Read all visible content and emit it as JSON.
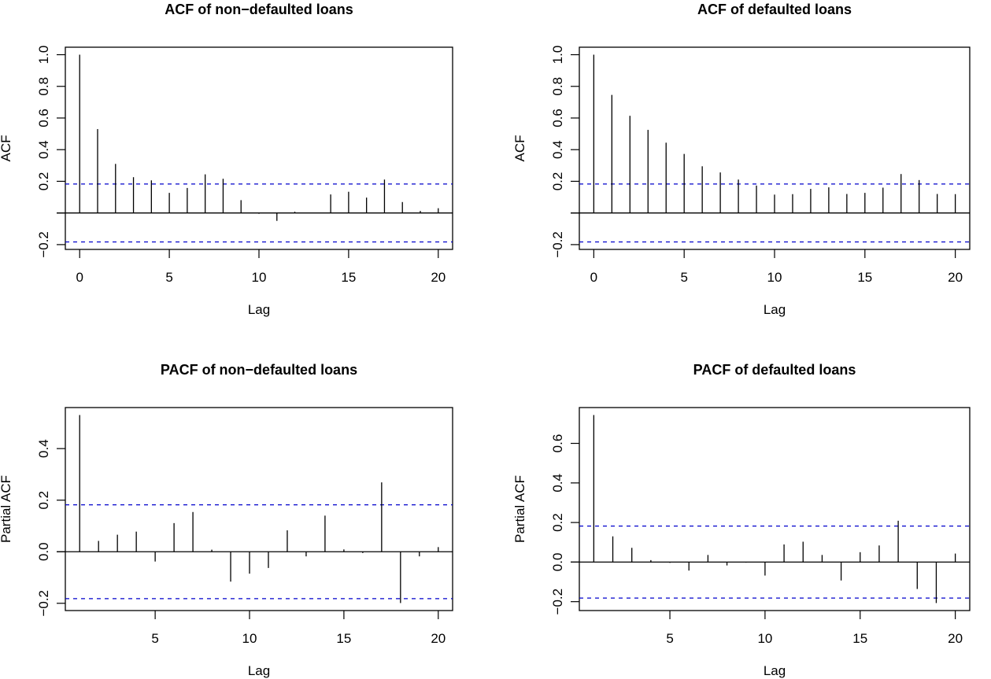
{
  "colors": {
    "bars": "#000000",
    "ci_line": "#0000cc",
    "zero_line": "#000000"
  },
  "chart_data": [
    {
      "type": "bar",
      "title": "ACF of non−defaulted loans",
      "xlabel": "Lag",
      "ylabel": "ACF",
      "x": [
        0,
        1,
        2,
        3,
        4,
        5,
        6,
        7,
        8,
        9,
        10,
        11,
        12,
        13,
        14,
        15,
        16,
        17,
        18,
        19,
        20
      ],
      "values": [
        1.0,
        0.53,
        0.31,
        0.226,
        0.206,
        0.127,
        0.158,
        0.244,
        0.216,
        0.081,
        -0.005,
        -0.05,
        0.008,
        0.003,
        0.117,
        0.134,
        0.097,
        0.211,
        0.069,
        0.013,
        0.03
      ],
      "ci": 0.183,
      "xlim": [
        0,
        20
      ],
      "ylim": [
        -0.183,
        1.0
      ],
      "xticks": [
        0,
        5,
        10,
        15,
        20
      ],
      "xtick_labels": [
        "0",
        "5",
        "10",
        "15",
        "20"
      ],
      "yticks": [
        -0.2,
        0.0,
        0.2,
        0.4,
        0.6,
        0.8,
        1.0
      ],
      "ytick_labels": [
        "−0.2",
        "",
        "0.2",
        "0.4",
        "0.6",
        "0.8",
        "1.0"
      ]
    },
    {
      "type": "bar",
      "title": "ACF of defaulted loans",
      "xlabel": "Lag",
      "ylabel": "ACF",
      "x": [
        0,
        1,
        2,
        3,
        4,
        5,
        6,
        7,
        8,
        9,
        10,
        11,
        12,
        13,
        14,
        15,
        16,
        17,
        18,
        19,
        20
      ],
      "values": [
        1.0,
        0.746,
        0.614,
        0.525,
        0.444,
        0.373,
        0.295,
        0.256,
        0.211,
        0.173,
        0.116,
        0.119,
        0.152,
        0.162,
        0.12,
        0.127,
        0.16,
        0.246,
        0.208,
        0.12,
        0.119
      ],
      "ci": 0.183,
      "xlim": [
        0,
        20
      ],
      "ylim": [
        -0.183,
        1.0
      ],
      "xticks": [
        0,
        5,
        10,
        15,
        20
      ],
      "xtick_labels": [
        "0",
        "5",
        "10",
        "15",
        "20"
      ],
      "yticks": [
        -0.2,
        0.0,
        0.2,
        0.4,
        0.6,
        0.8,
        1.0
      ],
      "ytick_labels": [
        "−0.2",
        "",
        "0.2",
        "0.4",
        "0.6",
        "0.8",
        "1.0"
      ]
    },
    {
      "type": "bar",
      "title": "PACF of non−defaulted loans",
      "xlabel": "Lag",
      "ylabel": "Partial ACF",
      "x": [
        1,
        2,
        3,
        4,
        5,
        6,
        7,
        8,
        9,
        10,
        11,
        12,
        13,
        14,
        15,
        16,
        17,
        18,
        19,
        20
      ],
      "values": [
        0.53,
        0.042,
        0.066,
        0.078,
        -0.038,
        0.111,
        0.154,
        0.008,
        -0.116,
        -0.085,
        -0.063,
        0.083,
        -0.018,
        0.14,
        0.009,
        -0.005,
        0.269,
        -0.199,
        -0.018,
        0.018
      ],
      "ci": 0.182,
      "xlim": [
        1,
        20
      ],
      "ylim": [
        -0.199,
        0.53
      ],
      "xticks": [
        5,
        10,
        15,
        20
      ],
      "xtick_labels": [
        "5",
        "10",
        "15",
        "20"
      ],
      "yticks": [
        -0.2,
        0.0,
        0.2,
        0.4
      ],
      "ytick_labels": [
        "−0.2",
        "0.0",
        "0.2",
        "0.4"
      ]
    },
    {
      "type": "bar",
      "title": "PACF of defaulted loans",
      "xlabel": "Lag",
      "ylabel": "Partial ACF",
      "x": [
        1,
        2,
        3,
        4,
        5,
        6,
        7,
        8,
        9,
        10,
        11,
        12,
        13,
        14,
        15,
        16,
        17,
        18,
        19,
        20
      ],
      "values": [
        0.743,
        0.13,
        0.072,
        0.01,
        -0.004,
        -0.043,
        0.036,
        -0.017,
        -0.003,
        -0.068,
        0.089,
        0.103,
        0.036,
        -0.093,
        0.05,
        0.084,
        0.209,
        -0.136,
        -0.207,
        0.043
      ],
      "ci": 0.182,
      "xlim": [
        1,
        20
      ],
      "ylim": [
        -0.207,
        0.743
      ],
      "xticks": [
        5,
        10,
        15,
        20
      ],
      "xtick_labels": [
        "5",
        "10",
        "15",
        "20"
      ],
      "yticks": [
        -0.2,
        0.0,
        0.2,
        0.4,
        0.6
      ],
      "ytick_labels": [
        "−0.2",
        "0.0",
        "0.2",
        "0.4",
        "0.6"
      ]
    }
  ]
}
